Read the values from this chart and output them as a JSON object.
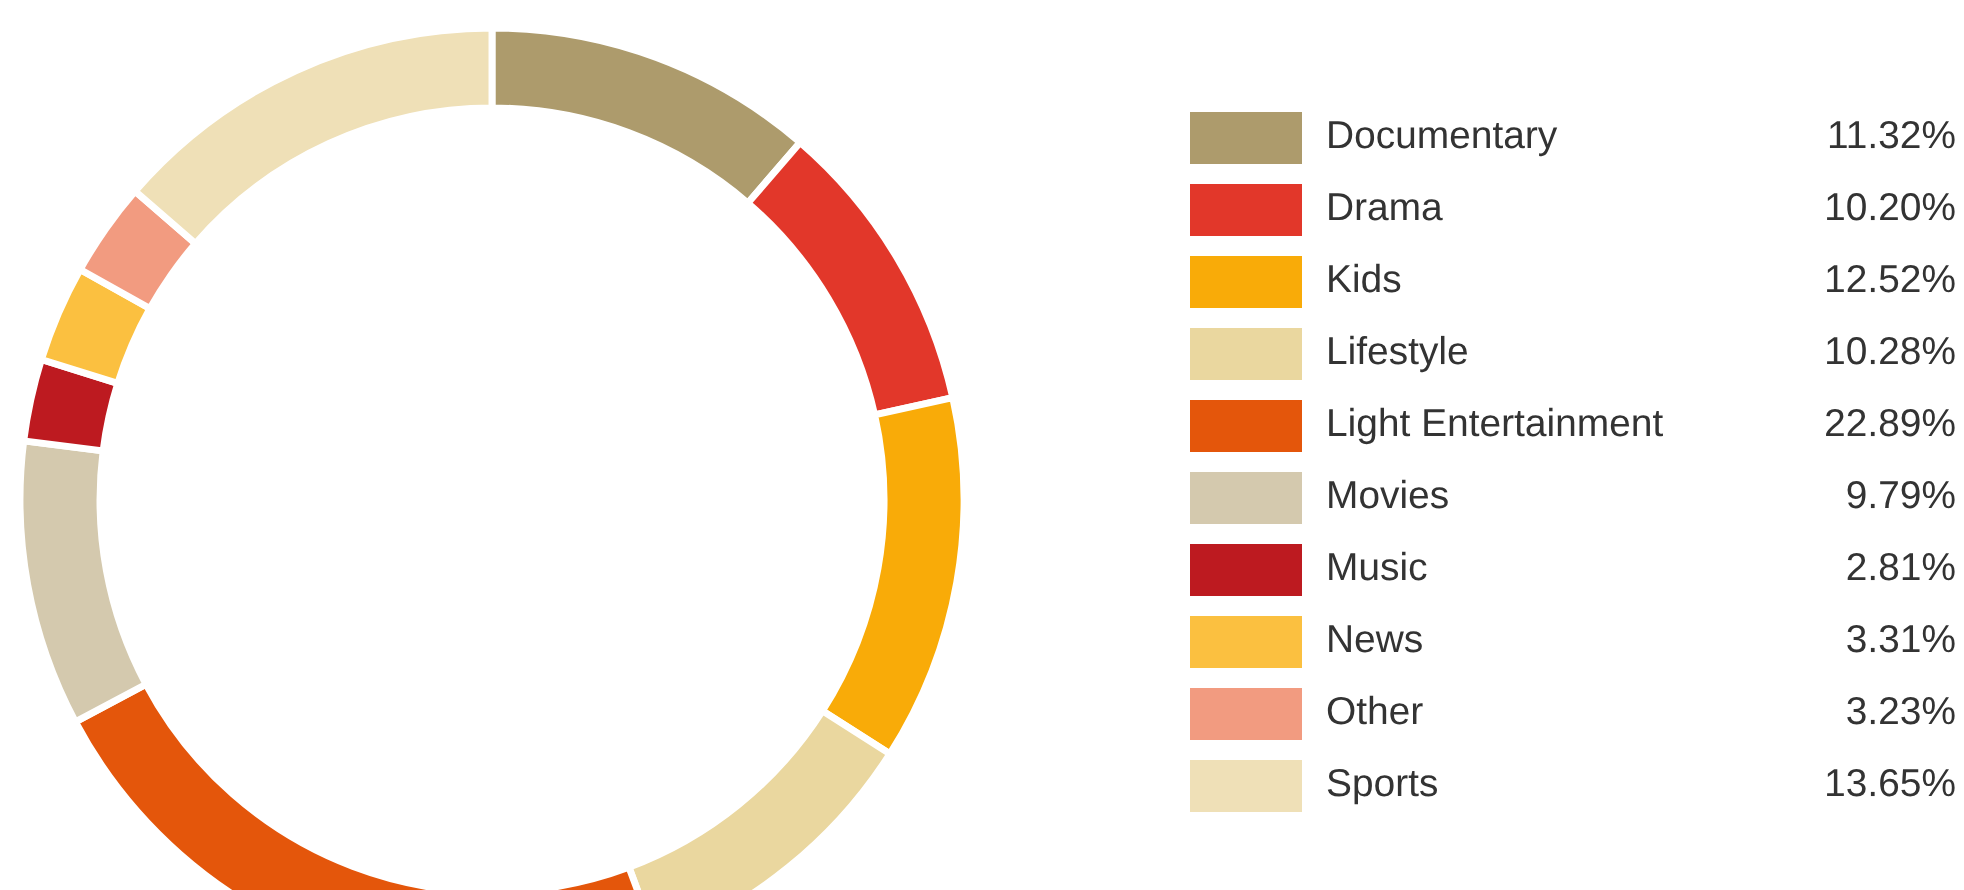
{
  "chart_data": {
    "type": "donut",
    "categories": [
      "Documentary",
      "Drama",
      "Kids",
      "Lifestyle",
      "Light Entertainment",
      "Movies",
      "Music",
      "News",
      "Other",
      "Sports"
    ],
    "values": [
      11.32,
      10.2,
      12.52,
      10.28,
      22.89,
      9.79,
      2.81,
      3.31,
      3.23,
      13.65
    ],
    "value_labels": [
      "11.32%",
      "10.20%",
      "12.52%",
      "10.28%",
      "22.89%",
      "9.79%",
      "2.81%",
      "3.31%",
      "3.23%",
      "13.65%"
    ],
    "colors": [
      "#ad9b6c",
      "#e2372a",
      "#f9ab08",
      "#ead79f",
      "#e4560b",
      "#d4c9ae",
      "#bd1a20",
      "#fbc040",
      "#f29b80",
      "#efe0b7"
    ],
    "legend": "right"
  }
}
